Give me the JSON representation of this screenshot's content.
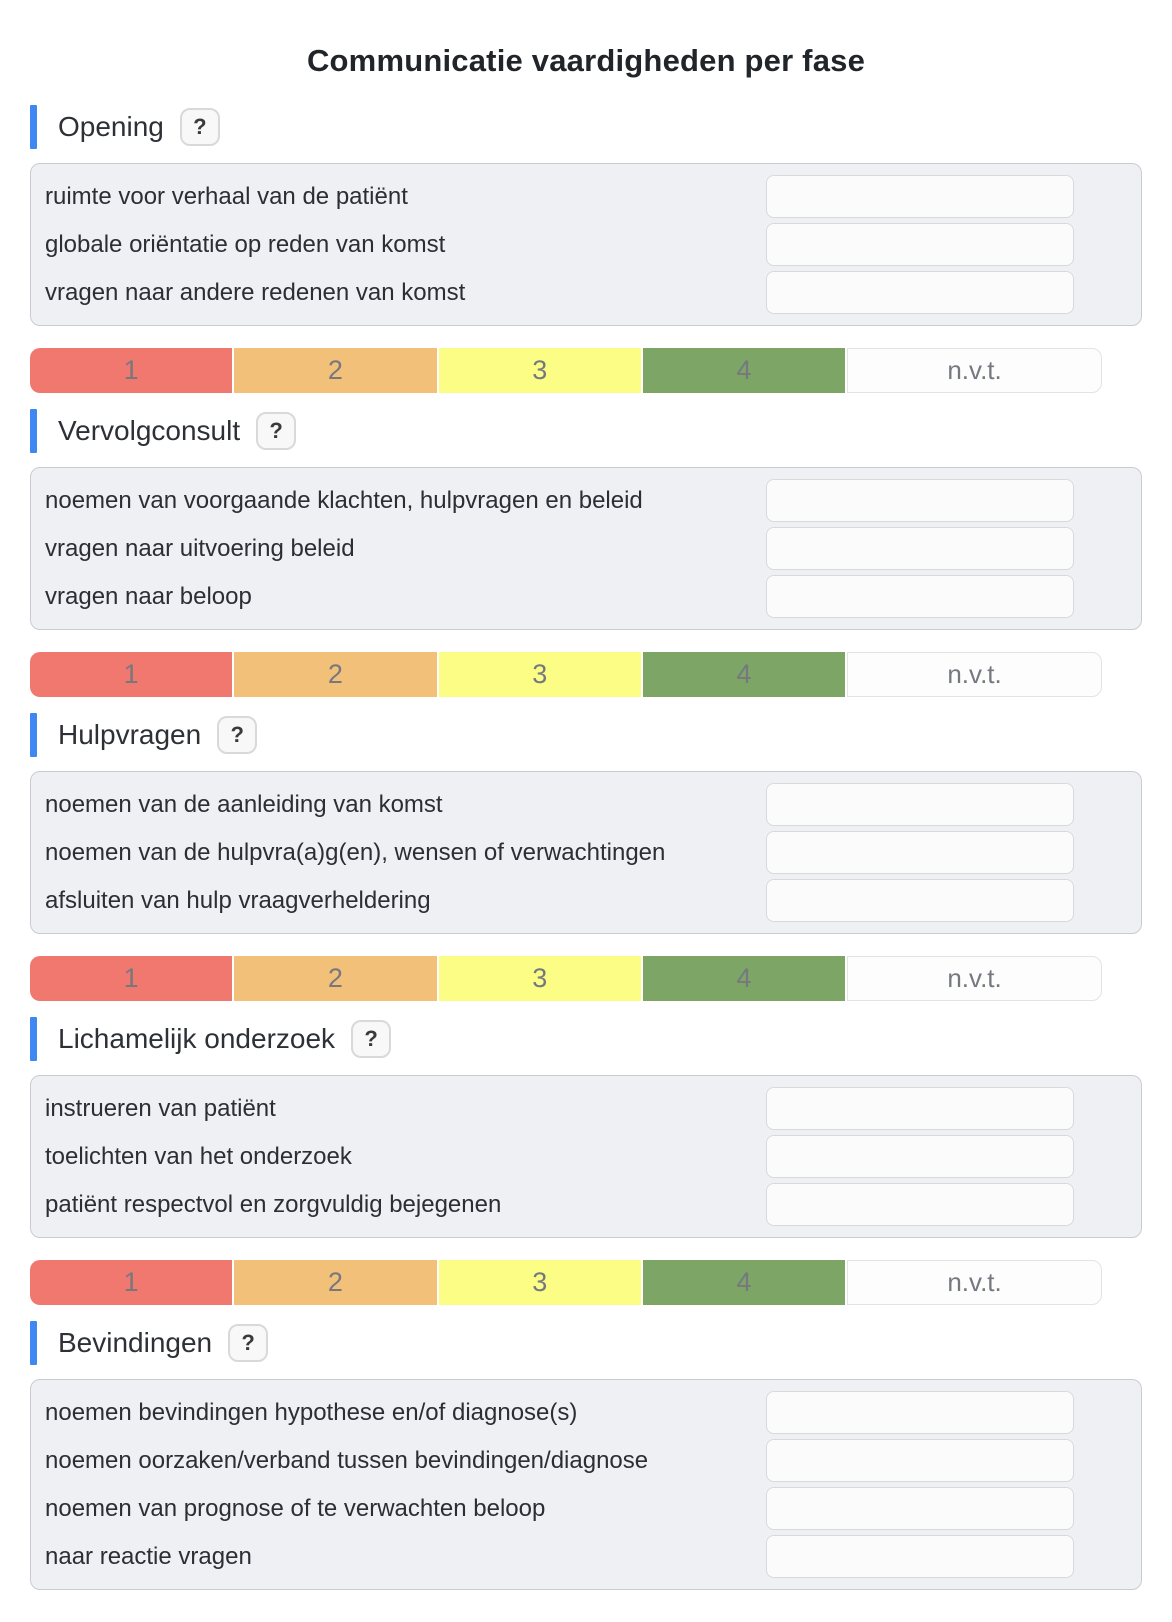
{
  "title": "Communicatie vaardigheden per fase",
  "help_button_label": "?",
  "accent_color": "#3f87f3",
  "scale": {
    "text_color": "#75797f",
    "options": [
      {
        "label": "1",
        "color": "#f0786e"
      },
      {
        "label": "2",
        "color": "#f3c079"
      },
      {
        "label": "3",
        "color": "#fbfd85"
      },
      {
        "label": "4",
        "color": "#7da566"
      },
      {
        "label": "n.v.t.",
        "color": "#fdfdfd"
      }
    ]
  },
  "sections": [
    {
      "title": "Opening",
      "show_scale": true,
      "items": [
        {
          "label": "ruimte voor verhaal van de patiënt",
          "value": ""
        },
        {
          "label": "globale oriëntatie op reden van komst",
          "value": ""
        },
        {
          "label": "vragen naar andere redenen van komst",
          "value": ""
        }
      ]
    },
    {
      "title": "Vervolgconsult",
      "show_scale": true,
      "items": [
        {
          "label": "noemen van voorgaande klachten, hulpvragen en beleid",
          "value": ""
        },
        {
          "label": "vragen naar uitvoering beleid",
          "value": ""
        },
        {
          "label": "vragen naar beloop",
          "value": ""
        }
      ]
    },
    {
      "title": "Hulpvragen",
      "show_scale": true,
      "items": [
        {
          "label": "noemen van de aanleiding van komst",
          "value": ""
        },
        {
          "label": "noemen van de hulpvra(a)g(en), wensen of verwachtingen",
          "value": ""
        },
        {
          "label": "afsluiten van hulp vraagverheldering",
          "value": ""
        }
      ]
    },
    {
      "title": "Lichamelijk onderzoek",
      "show_scale": true,
      "items": [
        {
          "label": "instrueren van patiënt",
          "value": ""
        },
        {
          "label": "toelichten van het onderzoek",
          "value": ""
        },
        {
          "label": "patiënt respectvol en zorgvuldig bejegenen",
          "value": ""
        }
      ]
    },
    {
      "title": "Bevindingen",
      "show_scale": false,
      "items": [
        {
          "label": "noemen bevindingen hypothese en/of diagnose(s)",
          "value": ""
        },
        {
          "label": "noemen oorzaken/verband tussen bevindingen/diagnose",
          "value": ""
        },
        {
          "label": "noemen van prognose of te verwachten beloop",
          "value": ""
        },
        {
          "label": "naar reactie vragen",
          "value": ""
        }
      ]
    }
  ]
}
